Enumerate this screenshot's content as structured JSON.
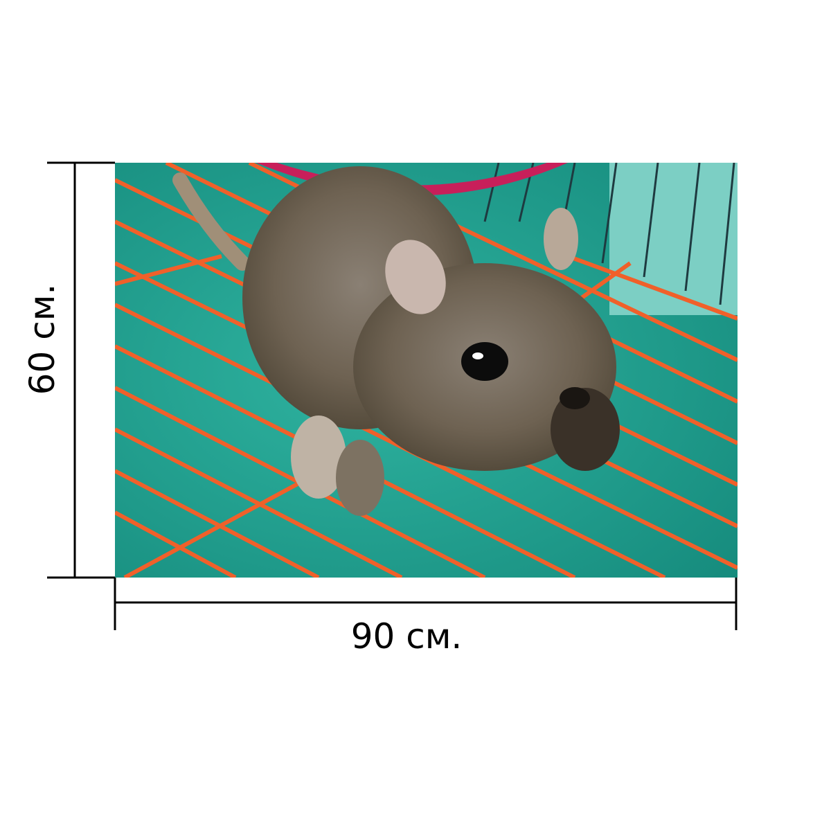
{
  "dimensions": {
    "height_label": "60 см.",
    "width_label": "90 см."
  }
}
